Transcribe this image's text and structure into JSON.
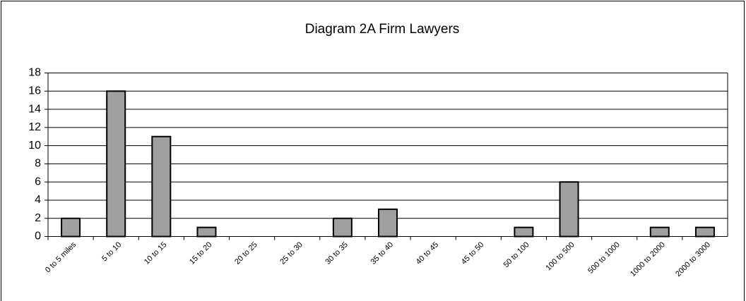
{
  "chart_data": {
    "type": "bar",
    "title": "Diagram 2A  Firm Lawyers",
    "categories": [
      "0 to 5 miles",
      "5 to 10",
      "10 to 15",
      "15 to 20",
      "20 to 25",
      "25 to 30",
      "30 to 35",
      "35 to 40",
      "40 to 45",
      "45 to 50",
      "50 to 100",
      "100 to 500",
      "500 to 1000",
      "1000 to 2000",
      "2000 to 3000"
    ],
    "values": [
      2,
      16,
      11,
      1,
      0,
      0,
      2,
      3,
      0,
      0,
      1,
      6,
      0,
      1,
      1
    ],
    "color": "#a0a0a0",
    "ylim": [
      0,
      18
    ],
    "yticks": [
      0,
      2,
      4,
      6,
      8,
      10,
      12,
      14,
      16,
      18
    ],
    "grid": true
  }
}
